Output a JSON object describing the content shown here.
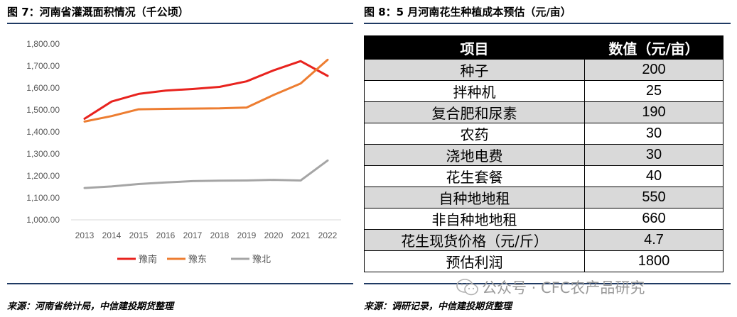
{
  "left": {
    "title": "图 7：河南省灌溉面积情况（千公顷）",
    "source": "来源：河南省统计局，中信建投期货整理"
  },
  "right": {
    "title": "图 8：5 月河南花生种植成本预估（元/亩）",
    "source": "来源：调研记录，中信建投期货整理"
  },
  "watermark": "公众号 · CFC农产品研究",
  "colors": {
    "rule": "#1f3a63",
    "yunan": "#e8231e",
    "yudong": "#ed7d31",
    "yubei": "#a5a5a5",
    "table_header_bg": "#000000",
    "table_shaded": "#d9d9d9"
  },
  "chart_data": [
    {
      "type": "line",
      "title": "",
      "xlabel": "",
      "ylabel": "",
      "x": [
        "2013",
        "2014",
        "2015",
        "2016",
        "2017",
        "2018",
        "2019",
        "2020",
        "2021",
        "2022"
      ],
      "ylim": [
        1000,
        1800
      ],
      "yticks": [
        "1,000.00",
        "1,100.00",
        "1,200.00",
        "1,300.00",
        "1,400.00",
        "1,500.00",
        "1,600.00",
        "1,700.00",
        "1,800.00"
      ],
      "ytick_values": [
        1000,
        1100,
        1200,
        1300,
        1400,
        1500,
        1600,
        1700,
        1800
      ],
      "grid": false,
      "legend_position": "bottom",
      "series": [
        {
          "name": "豫南",
          "color": "#e8231e",
          "values": [
            1460,
            1538,
            1573,
            1588,
            1595,
            1605,
            1630,
            1680,
            1722,
            1655
          ]
        },
        {
          "name": "豫东",
          "color": "#ed7d31",
          "values": [
            1447,
            1472,
            1503,
            1505,
            1506,
            1507,
            1511,
            1568,
            1620,
            1728
          ]
        },
        {
          "name": "豫北",
          "color": "#a5a5a5",
          "values": [
            1145,
            1152,
            1163,
            1170,
            1176,
            1178,
            1179,
            1182,
            1179,
            1270
          ]
        }
      ]
    },
    {
      "type": "table",
      "columns": [
        "项目",
        "数值（元/亩）"
      ],
      "rows": [
        [
          "种子",
          "200"
        ],
        [
          "拌种机",
          "25"
        ],
        [
          "复合肥和尿素",
          "190"
        ],
        [
          "农药",
          "30"
        ],
        [
          "浇地电费",
          "30"
        ],
        [
          "花生套餐",
          "40"
        ],
        [
          "自种地地租",
          "550"
        ],
        [
          "非自种地地租",
          "660"
        ],
        [
          "花生现货价格（元/斤）",
          "4.7"
        ],
        [
          "预估利润",
          "1800"
        ]
      ]
    }
  ]
}
